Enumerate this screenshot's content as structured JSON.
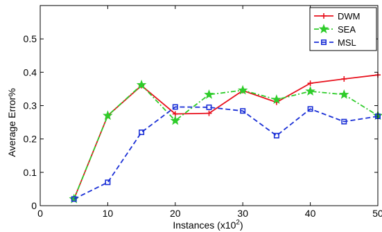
{
  "chart_data": {
    "type": "line",
    "title": "",
    "xlabel": "Instances (x10",
    "xlabel_exponent": "2",
    "xlabel_suffix": ")",
    "ylabel": "Average Error%",
    "xlim": [
      0,
      50
    ],
    "ylim": [
      0,
      0.6
    ],
    "x_ticks": [
      0,
      10,
      20,
      30,
      40,
      50
    ],
    "y_ticks": [
      0,
      0.1,
      0.2,
      0.3,
      0.4,
      0.5
    ],
    "y_tick_labels": [
      "0",
      "0.1",
      "0.2",
      "0.3",
      "0.4",
      "0.5"
    ],
    "x": [
      5,
      10,
      15,
      20,
      25,
      30,
      35,
      40,
      45,
      50
    ],
    "grid": false,
    "legend_position": "top-right",
    "series": [
      {
        "name": "DWM",
        "color": "#e8101c",
        "line_style": "solid",
        "marker": "plus",
        "values": [
          0.02,
          0.27,
          0.36,
          0.275,
          0.277,
          0.345,
          0.31,
          0.367,
          0.38,
          0.392
        ]
      },
      {
        "name": "SEA",
        "color": "#2ecc2a",
        "line_style": "dash-dot",
        "marker": "star",
        "values": [
          0.02,
          0.27,
          0.362,
          0.255,
          0.333,
          0.346,
          0.318,
          0.343,
          0.333,
          0.27
        ]
      },
      {
        "name": "MSL",
        "color": "#1a2fd6",
        "line_style": "dashed",
        "marker": "square",
        "values": [
          0.02,
          0.07,
          0.22,
          0.296,
          0.295,
          0.284,
          0.21,
          0.29,
          0.252,
          0.268
        ]
      }
    ]
  }
}
